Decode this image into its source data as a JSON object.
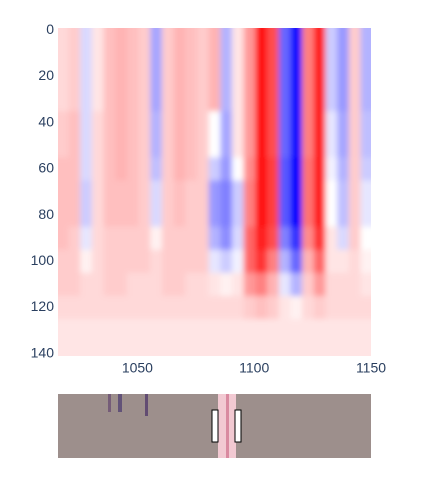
{
  "chart_data": {
    "type": "heatmap",
    "x": [
      1018,
      1023,
      1028,
      1033,
      1038,
      1043,
      1048,
      1053,
      1058,
      1063,
      1068,
      1073,
      1078,
      1083,
      1088,
      1093,
      1098,
      1103,
      1108,
      1113,
      1118,
      1123,
      1128,
      1133,
      1138,
      1143,
      1148
    ],
    "y": [
      0,
      10,
      20,
      30,
      40,
      50,
      60,
      70,
      80,
      90,
      100,
      110,
      120,
      130,
      140
    ],
    "z": [
      [
        0.15,
        0.2,
        -0.15,
        0.1,
        0.25,
        0.3,
        0.25,
        0.2,
        -0.35,
        0.2,
        0.3,
        0.25,
        0.2,
        0.3,
        -0.3,
        0.1,
        0.4,
        0.95,
        0.7,
        -0.6,
        -0.95,
        0.5,
        0.9,
        -0.2,
        -0.4,
        0.2,
        -0.3
      ],
      [
        0.15,
        0.2,
        -0.15,
        0.1,
        0.25,
        0.3,
        0.25,
        0.2,
        -0.35,
        0.2,
        0.3,
        0.25,
        0.2,
        0.3,
        -0.3,
        0.1,
        0.4,
        0.95,
        0.7,
        -0.6,
        -0.95,
        0.5,
        0.9,
        -0.2,
        -0.4,
        0.2,
        -0.3
      ],
      [
        0.15,
        0.2,
        -0.15,
        0.1,
        0.25,
        0.3,
        0.25,
        0.2,
        -0.35,
        0.2,
        0.3,
        0.25,
        0.2,
        0.3,
        -0.3,
        0.1,
        0.4,
        0.95,
        0.7,
        -0.6,
        -0.95,
        0.5,
        0.9,
        -0.2,
        -0.4,
        0.2,
        -0.3
      ],
      [
        0.15,
        0.2,
        -0.15,
        0.1,
        0.25,
        0.3,
        0.25,
        0.2,
        -0.35,
        0.2,
        0.3,
        0.25,
        0.2,
        0.3,
        -0.3,
        0.1,
        0.4,
        0.95,
        0.7,
        -0.6,
        -0.95,
        0.5,
        0.9,
        -0.2,
        -0.4,
        0.2,
        -0.3
      ],
      [
        0.2,
        0.25,
        -0.15,
        0.15,
        0.25,
        0.3,
        0.25,
        0.2,
        -0.3,
        0.2,
        0.3,
        0.25,
        0.2,
        0.0,
        -0.35,
        0.1,
        0.4,
        0.95,
        0.7,
        -0.6,
        -0.95,
        0.5,
        0.9,
        -0.1,
        -0.35,
        0.2,
        -0.25
      ],
      [
        0.2,
        0.25,
        -0.15,
        0.15,
        0.25,
        0.3,
        0.25,
        0.2,
        -0.3,
        0.2,
        0.3,
        0.25,
        0.2,
        0.0,
        -0.35,
        0.1,
        0.4,
        0.95,
        0.7,
        -0.6,
        -0.95,
        0.5,
        0.9,
        -0.1,
        -0.35,
        0.2,
        -0.25
      ],
      [
        0.25,
        0.25,
        -0.15,
        0.15,
        0.25,
        0.3,
        0.25,
        0.2,
        -0.25,
        0.2,
        0.3,
        0.25,
        0.2,
        -0.2,
        -0.4,
        0.0,
        0.45,
        0.95,
        0.75,
        -0.65,
        -1,
        0.55,
        0.9,
        -0.05,
        -0.3,
        0.2,
        -0.2
      ],
      [
        0.25,
        0.25,
        -0.2,
        0.15,
        0.25,
        0.25,
        0.25,
        0.2,
        -0.15,
        0.2,
        0.25,
        0.2,
        0.2,
        -0.4,
        -0.5,
        -0.2,
        0.5,
        0.95,
        0.75,
        -0.65,
        -1,
        0.55,
        0.9,
        0,
        -0.25,
        0.2,
        -0.1
      ],
      [
        0.25,
        0.25,
        -0.2,
        0.15,
        0.25,
        0.25,
        0.25,
        0.2,
        -0.15,
        0.2,
        0.25,
        0.2,
        0.2,
        -0.4,
        -0.5,
        -0.2,
        0.5,
        0.95,
        0.75,
        -0.65,
        -1,
        0.55,
        0.9,
        0,
        -0.25,
        0.2,
        -0.1
      ],
      [
        0.25,
        0.2,
        -0.1,
        0.15,
        0.2,
        0.2,
        0.2,
        0.2,
        0.05,
        0.2,
        0.2,
        0.2,
        0.2,
        -0.3,
        -0.45,
        -0.15,
        0.6,
        0.9,
        0.7,
        -0.5,
        -0.8,
        0.45,
        0.8,
        0.1,
        -0.15,
        0.2,
        0
      ],
      [
        0.2,
        0.2,
        0.05,
        0.15,
        0.2,
        0.2,
        0.2,
        0.2,
        0.15,
        0.2,
        0.2,
        0.2,
        0.2,
        -0.1,
        -0.2,
        -0.05,
        0.6,
        0.8,
        0.5,
        -0.3,
        -0.6,
        0.3,
        0.6,
        0.1,
        0.1,
        0.15,
        0.05
      ],
      [
        0.2,
        0.2,
        0.15,
        0.15,
        0.2,
        0.2,
        0.15,
        0.15,
        0.15,
        0.2,
        0.2,
        0.15,
        0.15,
        0.1,
        0.05,
        0.1,
        0.4,
        0.5,
        0.3,
        -0.1,
        -0.3,
        0.2,
        0.4,
        0.15,
        0.15,
        0.15,
        0.1
      ],
      [
        0.15,
        0.15,
        0.15,
        0.15,
        0.15,
        0.15,
        0.15,
        0.15,
        0.15,
        0.15,
        0.15,
        0.15,
        0.15,
        0.15,
        0.15,
        0.15,
        0.2,
        0.25,
        0.2,
        0.1,
        0.05,
        0.15,
        0.2,
        0.15,
        0.15,
        0.15,
        0.15
      ],
      [
        0.1,
        0.1,
        0.1,
        0.1,
        0.1,
        0.1,
        0.1,
        0.1,
        0.1,
        0.1,
        0.1,
        0.1,
        0.1,
        0.1,
        0.1,
        0.1,
        0.1,
        0.1,
        0.1,
        0.1,
        0.1,
        0.1,
        0.1,
        0.1,
        0.1,
        0.1,
        0.1
      ],
      [
        0.1,
        0.1,
        0.1,
        0.1,
        0.1,
        0.1,
        0.1,
        0.1,
        0.1,
        0.1,
        0.1,
        0.1,
        0.1,
        0.1,
        0.1,
        0.1,
        0.1,
        0.1,
        0.1,
        0.1,
        0.1,
        0.1,
        0.1,
        0.1,
        0.1,
        0.1,
        0.1
      ]
    ],
    "zlim": [
      -1,
      1
    ],
    "colorscale": [
      "#0000ff",
      "#ffffff",
      "#ff0000"
    ],
    "xlim": [
      1016,
      1150
    ],
    "ylim": [
      -1,
      141
    ],
    "y_reversed": true,
    "xticks": [
      1050,
      1100,
      1150
    ],
    "yticks": [
      0,
      20,
      40,
      60,
      80,
      100,
      120,
      140
    ]
  }
}
